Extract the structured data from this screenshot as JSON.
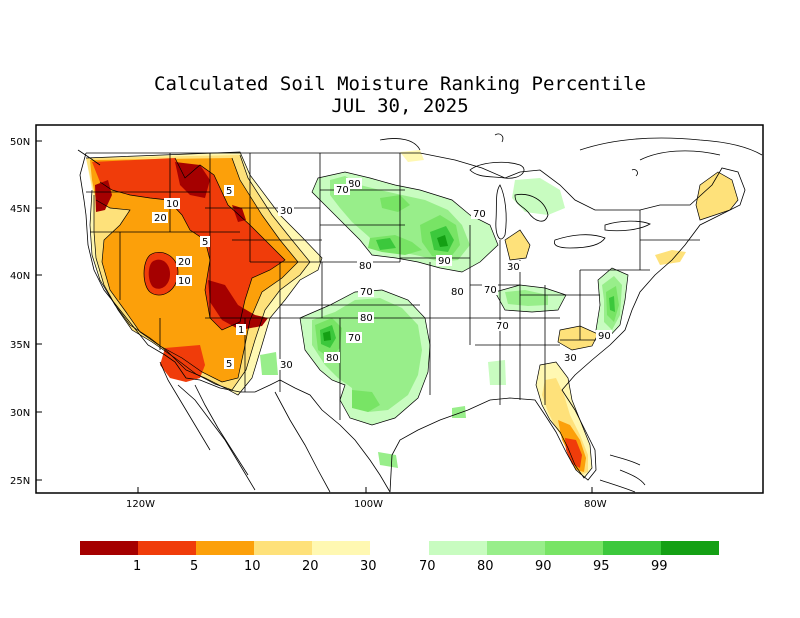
{
  "title": "Calculated Soil Moisture Ranking Percentile",
  "date": "JUL 30, 2025",
  "lat_ticks": [
    "50N",
    "45N",
    "40N",
    "35N",
    "30N",
    "25N"
  ],
  "lon_ticks": [
    "120W",
    "100W",
    "80W"
  ],
  "contour_labels": [
    "80",
    "70",
    "5",
    "30",
    "20",
    "10",
    "5",
    "20",
    "10",
    "1",
    "5",
    "80",
    "70",
    "90",
    "70",
    "80",
    "30",
    "70",
    "70",
    "90",
    "30",
    "80",
    "70",
    "80",
    "1",
    "70"
  ],
  "legend": {
    "dry_colors": [
      "#a50000",
      "#f03c0a",
      "#fca00a",
      "#fee17a",
      "#fff8b2"
    ],
    "wet_colors": [
      "#c8fcc0",
      "#98ee8a",
      "#78e465",
      "#3cc83c",
      "#14a014"
    ],
    "dry_labels": [
      "1",
      "5",
      "10",
      "20",
      "30"
    ],
    "wet_labels": [
      "70",
      "80",
      "90",
      "95",
      "99"
    ]
  },
  "colors": {
    "pct_1": "#a50000",
    "pct_5": "#f03c0a",
    "pct_10": "#fca00a",
    "pct_20": "#fee17a",
    "pct_30": "#fff8b2",
    "pct_70": "#c8fcc0",
    "pct_80": "#98ee8a",
    "pct_90": "#78e465",
    "pct_95": "#3cc83c",
    "pct_99": "#14a014"
  }
}
